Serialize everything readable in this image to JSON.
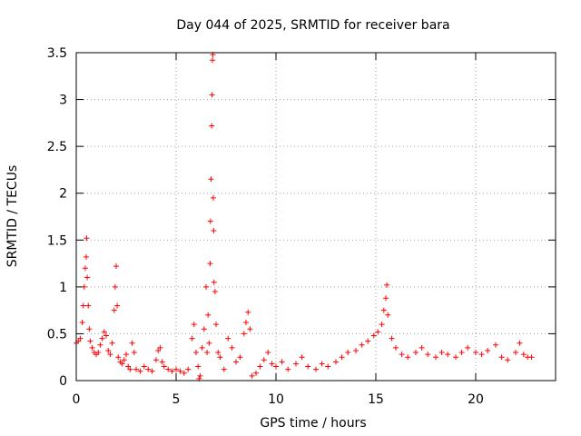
{
  "chart_data": {
    "type": "scatter",
    "title": "Day 044 of 2025, SRMTID for receiver bara",
    "xlabel": "GPS time / hours",
    "ylabel": "SRMTID / TECUs",
    "xlim": [
      0,
      24
    ],
    "ylim": [
      0,
      3.5
    ],
    "xticks": [
      0,
      5,
      10,
      15,
      20
    ],
    "xtick_labels": [
      "0",
      "5",
      "10",
      "15",
      "20"
    ],
    "yticks": [
      0,
      0.5,
      1,
      1.5,
      2,
      2.5,
      3,
      3.5
    ],
    "ytick_labels": [
      "0",
      "0.5",
      "1",
      "1.5",
      "2",
      "2.5",
      "3",
      "3.5"
    ],
    "grid": true,
    "marker": "+",
    "color": "#ff0000",
    "series": [
      {
        "name": "SRMTID",
        "points": [
          [
            0.0,
            0.4
          ],
          [
            0.1,
            0.42
          ],
          [
            0.2,
            0.45
          ],
          [
            0.3,
            0.62
          ],
          [
            0.35,
            0.8
          ],
          [
            0.4,
            1.0
          ],
          [
            0.45,
            1.2
          ],
          [
            0.5,
            1.32
          ],
          [
            0.52,
            1.52
          ],
          [
            0.55,
            1.1
          ],
          [
            0.6,
            0.8
          ],
          [
            0.65,
            0.55
          ],
          [
            0.7,
            0.42
          ],
          [
            0.8,
            0.35
          ],
          [
            0.9,
            0.3
          ],
          [
            1.0,
            0.28
          ],
          [
            1.1,
            0.3
          ],
          [
            1.2,
            0.38
          ],
          [
            1.3,
            0.45
          ],
          [
            1.4,
            0.52
          ],
          [
            1.5,
            0.48
          ],
          [
            1.6,
            0.32
          ],
          [
            1.7,
            0.28
          ],
          [
            1.8,
            0.4
          ],
          [
            1.9,
            0.75
          ],
          [
            1.95,
            1.0
          ],
          [
            2.0,
            1.22
          ],
          [
            2.05,
            0.8
          ],
          [
            2.1,
            0.25
          ],
          [
            2.2,
            0.2
          ],
          [
            2.3,
            0.18
          ],
          [
            2.4,
            0.22
          ],
          [
            2.5,
            0.28
          ],
          [
            2.6,
            0.15
          ],
          [
            2.7,
            0.12
          ],
          [
            2.8,
            0.4
          ],
          [
            2.9,
            0.3
          ],
          [
            3.0,
            0.12
          ],
          [
            3.2,
            0.1
          ],
          [
            3.4,
            0.15
          ],
          [
            3.6,
            0.12
          ],
          [
            3.8,
            0.1
          ],
          [
            4.0,
            0.22
          ],
          [
            4.1,
            0.32
          ],
          [
            4.2,
            0.35
          ],
          [
            4.3,
            0.2
          ],
          [
            4.4,
            0.15
          ],
          [
            4.6,
            0.12
          ],
          [
            4.8,
            0.1
          ],
          [
            5.0,
            0.12
          ],
          [
            5.2,
            0.1
          ],
          [
            5.4,
            0.08
          ],
          [
            5.6,
            0.12
          ],
          [
            5.8,
            0.45
          ],
          [
            5.9,
            0.6
          ],
          [
            6.0,
            0.3
          ],
          [
            6.1,
            0.15
          ],
          [
            6.15,
            0.02
          ],
          [
            6.2,
            0.05
          ],
          [
            6.3,
            0.35
          ],
          [
            6.4,
            0.55
          ],
          [
            6.5,
            1.0
          ],
          [
            6.55,
            0.3
          ],
          [
            6.6,
            0.7
          ],
          [
            6.65,
            0.4
          ],
          [
            6.7,
            1.25
          ],
          [
            6.72,
            1.7
          ],
          [
            6.75,
            2.15
          ],
          [
            6.78,
            2.72
          ],
          [
            6.8,
            3.05
          ],
          [
            6.82,
            3.42
          ],
          [
            6.84,
            3.48
          ],
          [
            6.86,
            1.95
          ],
          [
            6.88,
            1.6
          ],
          [
            6.9,
            1.05
          ],
          [
            6.95,
            0.95
          ],
          [
            7.0,
            0.6
          ],
          [
            7.1,
            0.3
          ],
          [
            7.2,
            0.25
          ],
          [
            7.4,
            0.12
          ],
          [
            7.6,
            0.45
          ],
          [
            7.8,
            0.35
          ],
          [
            8.0,
            0.2
          ],
          [
            8.2,
            0.25
          ],
          [
            8.4,
            0.5
          ],
          [
            8.5,
            0.62
          ],
          [
            8.6,
            0.73
          ],
          [
            8.7,
            0.55
          ],
          [
            8.8,
            0.05
          ],
          [
            9.0,
            0.08
          ],
          [
            9.2,
            0.15
          ],
          [
            9.4,
            0.22
          ],
          [
            9.6,
            0.3
          ],
          [
            9.8,
            0.18
          ],
          [
            10.0,
            0.15
          ],
          [
            10.3,
            0.2
          ],
          [
            10.6,
            0.12
          ],
          [
            11.0,
            0.18
          ],
          [
            11.3,
            0.25
          ],
          [
            11.6,
            0.15
          ],
          [
            12.0,
            0.12
          ],
          [
            12.3,
            0.18
          ],
          [
            12.6,
            0.15
          ],
          [
            13.0,
            0.2
          ],
          [
            13.3,
            0.25
          ],
          [
            13.6,
            0.3
          ],
          [
            14.0,
            0.32
          ],
          [
            14.3,
            0.38
          ],
          [
            14.6,
            0.42
          ],
          [
            14.9,
            0.48
          ],
          [
            15.1,
            0.52
          ],
          [
            15.3,
            0.6
          ],
          [
            15.4,
            0.75
          ],
          [
            15.5,
            0.88
          ],
          [
            15.55,
            1.02
          ],
          [
            15.6,
            0.7
          ],
          [
            15.8,
            0.45
          ],
          [
            16.0,
            0.35
          ],
          [
            16.3,
            0.28
          ],
          [
            16.6,
            0.25
          ],
          [
            17.0,
            0.3
          ],
          [
            17.3,
            0.35
          ],
          [
            17.6,
            0.28
          ],
          [
            18.0,
            0.25
          ],
          [
            18.3,
            0.3
          ],
          [
            18.6,
            0.28
          ],
          [
            19.0,
            0.25
          ],
          [
            19.3,
            0.3
          ],
          [
            19.6,
            0.35
          ],
          [
            20.0,
            0.3
          ],
          [
            20.3,
            0.28
          ],
          [
            20.6,
            0.32
          ],
          [
            21.0,
            0.38
          ],
          [
            21.3,
            0.25
          ],
          [
            21.6,
            0.22
          ],
          [
            22.0,
            0.3
          ],
          [
            22.2,
            0.4
          ],
          [
            22.4,
            0.28
          ],
          [
            22.6,
            0.25
          ],
          [
            22.8,
            0.25
          ]
        ]
      }
    ]
  }
}
